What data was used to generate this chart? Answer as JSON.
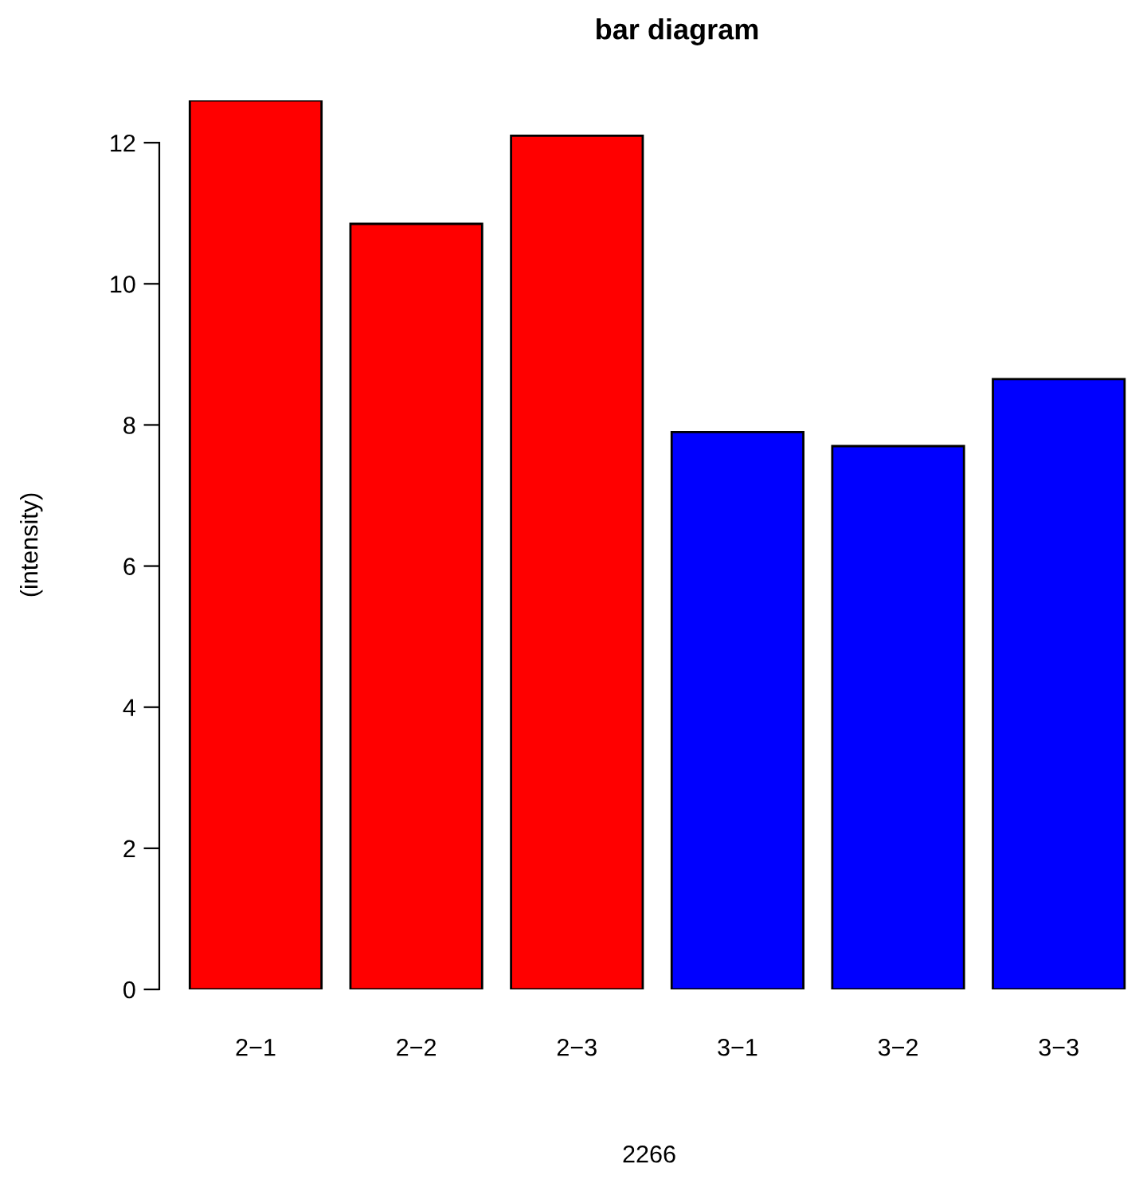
{
  "chart_data": {
    "type": "bar",
    "title": "bar diagram",
    "xlabel": "2266",
    "ylabel": "(intensity)",
    "categories": [
      "2−1",
      "2−2",
      "2−3",
      "3−1",
      "3−2",
      "3−3"
    ],
    "values": [
      12.6,
      10.85,
      12.1,
      7.9,
      7.7,
      8.65
    ],
    "colors": [
      "#ff0000",
      "#ff0000",
      "#ff0000",
      "#0000ff",
      "#0000ff",
      "#0000ff"
    ],
    "ylim": [
      0,
      12.6
    ],
    "yticks": [
      0,
      2,
      4,
      6,
      8,
      10,
      12
    ],
    "grid": false,
    "legend": false
  }
}
